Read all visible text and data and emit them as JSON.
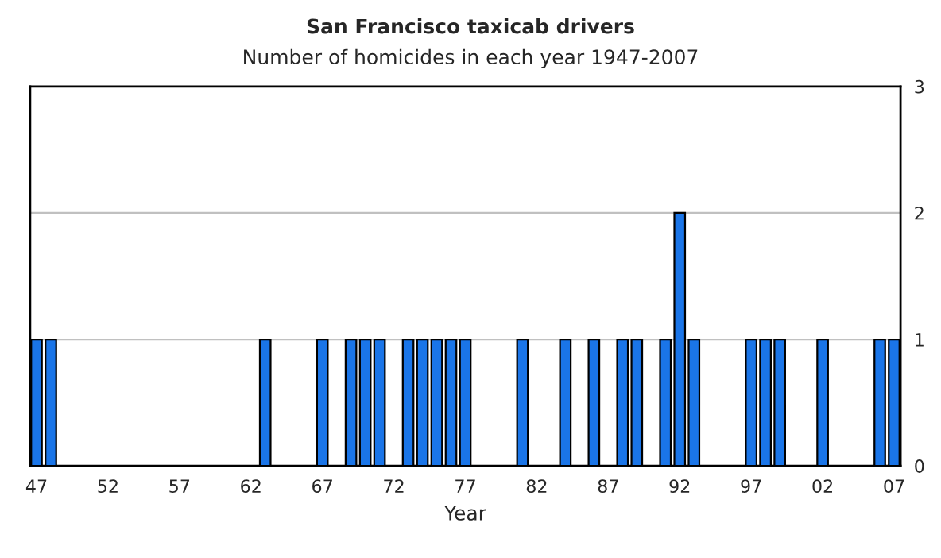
{
  "chart_data": {
    "type": "bar",
    "title": "San Francisco taxicab drivers",
    "subtitle": "Number of homicides in each year 1947-2007",
    "xlabel": "Year",
    "categories": [
      "47",
      null,
      null,
      null,
      null,
      "52",
      null,
      null,
      null,
      null,
      "57",
      null,
      null,
      null,
      null,
      "62",
      null,
      null,
      null,
      null,
      "67",
      null,
      null,
      null,
      null,
      "72",
      null,
      null,
      null,
      null,
      "77",
      null,
      null,
      null,
      null,
      "82",
      null,
      null,
      null,
      null,
      "87",
      null,
      null,
      null,
      null,
      "92",
      null,
      null,
      null,
      null,
      "97",
      null,
      null,
      null,
      null,
      "02",
      null,
      null,
      null,
      null,
      "07"
    ],
    "values": [
      1,
      1,
      0,
      0,
      0,
      0,
      0,
      0,
      0,
      0,
      0,
      0,
      0,
      0,
      0,
      0,
      1,
      0,
      0,
      0,
      1,
      0,
      1,
      1,
      1,
      0,
      1,
      1,
      1,
      1,
      1,
      0,
      0,
      0,
      1,
      0,
      0,
      1,
      0,
      1,
      0,
      1,
      1,
      0,
      1,
      2,
      1,
      0,
      0,
      0,
      1,
      1,
      1,
      0,
      0,
      1,
      0,
      0,
      0,
      1,
      1
    ],
    "color": "#1a75e8",
    "ylim": [
      0,
      3
    ],
    "yticks": [
      0,
      1,
      2,
      3
    ],
    "grid": "y"
  }
}
